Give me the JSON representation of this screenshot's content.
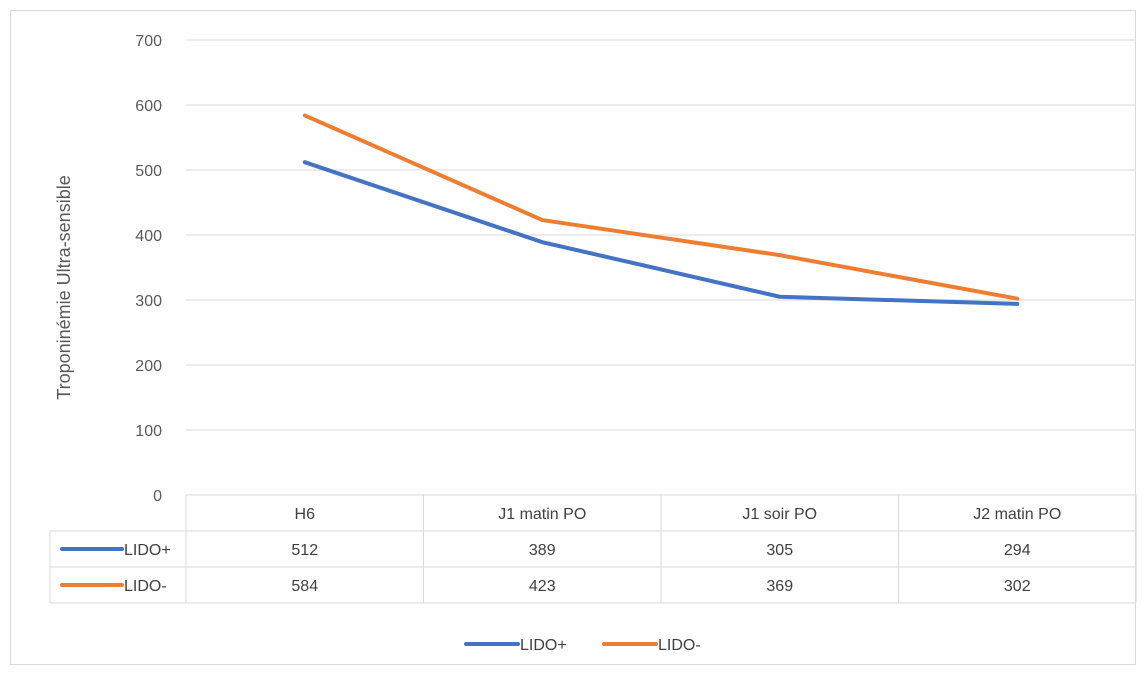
{
  "chart_data": {
    "type": "line",
    "title": "",
    "xlabel": "",
    "ylabel": "Troponinémie Ultra-sensible",
    "categories": [
      "H6",
      "J1 matin PO",
      "J1 soir PO",
      "J2 matin PO"
    ],
    "ylim": [
      0,
      700
    ],
    "yticks": [
      0,
      100,
      200,
      300,
      400,
      500,
      600,
      700
    ],
    "grid": true,
    "legend": "bottom",
    "data_table": true,
    "series": [
      {
        "name": "LIDO+",
        "values": [
          512,
          389,
          305,
          294
        ],
        "color": "#4472C4"
      },
      {
        "name": "LIDO-",
        "values": [
          584,
          423,
          369,
          302
        ],
        "color": "#ED7D31"
      }
    ]
  }
}
